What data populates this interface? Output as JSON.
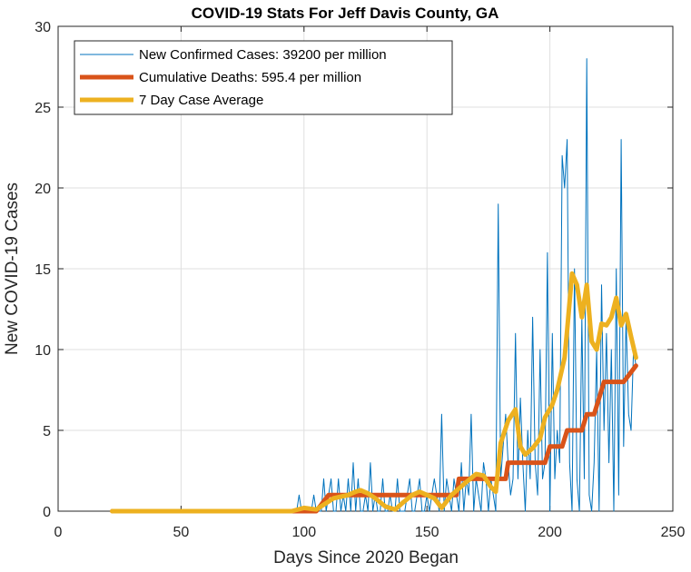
{
  "chart_data": {
    "type": "line",
    "title": "COVID-19 Stats For Jeff Davis County, GA",
    "xlabel": "Days Since 2020 Began",
    "ylabel": "New COVID-19 Cases",
    "xlim": [
      0,
      250
    ],
    "ylim": [
      0,
      30
    ],
    "xticks": [
      "0",
      "50",
      "100",
      "150",
      "200",
      "250"
    ],
    "yticks": [
      "0",
      "5",
      "10",
      "15",
      "20",
      "25",
      "30"
    ],
    "grid": true,
    "legend_position": "top-left",
    "series": [
      {
        "name": "New Confirmed Cases: 39200 per million",
        "color": "#0072BD",
        "x": [
          22,
          60,
          90,
          97,
          98,
          99,
          100,
          101,
          102,
          103,
          104,
          105,
          106,
          107,
          108,
          109,
          110,
          111,
          112,
          113,
          114,
          115,
          116,
          117,
          118,
          119,
          120,
          121,
          122,
          123,
          124,
          125,
          126,
          127,
          128,
          129,
          130,
          131,
          132,
          133,
          134,
          135,
          136,
          137,
          138,
          139,
          140,
          141,
          142,
          143,
          144,
          145,
          146,
          147,
          148,
          149,
          150,
          151,
          152,
          153,
          154,
          155,
          156,
          157,
          158,
          159,
          160,
          161,
          162,
          163,
          164,
          165,
          166,
          167,
          168,
          169,
          170,
          171,
          172,
          173,
          174,
          175,
          176,
          177,
          178,
          179,
          180,
          181,
          182,
          183,
          184,
          185,
          186,
          187,
          188,
          189,
          190,
          191,
          192,
          193,
          194,
          195,
          196,
          197,
          198,
          199,
          200,
          201,
          202,
          203,
          204,
          205,
          206,
          207,
          208,
          209,
          210,
          211,
          212,
          213,
          214,
          215,
          216,
          217,
          218,
          219,
          220,
          221,
          222,
          223,
          224,
          225,
          226,
          227,
          228,
          229,
          230,
          231,
          232,
          233,
          234,
          235
        ],
        "y": [
          0,
          0,
          0,
          0,
          1,
          0,
          0,
          0,
          0,
          0,
          1,
          0,
          0,
          0,
          2,
          0,
          1,
          2,
          0,
          0,
          2,
          0,
          1,
          0,
          2,
          0,
          3,
          0,
          2,
          0,
          0,
          1,
          0,
          3,
          0,
          1,
          0,
          0,
          2,
          0,
          0,
          1,
          0,
          0,
          2,
          0,
          0,
          0,
          1,
          2,
          0,
          0,
          1,
          2,
          0,
          0,
          1,
          0,
          1,
          2,
          1,
          0,
          6,
          0,
          2,
          1,
          0,
          2,
          1,
          0,
          3,
          0,
          2,
          1,
          6,
          0,
          2,
          1,
          0,
          3,
          2,
          0,
          2,
          1,
          0,
          19,
          2,
          4,
          6,
          3,
          1,
          2,
          11,
          2,
          7,
          3,
          0,
          5,
          2,
          12,
          3,
          1,
          10,
          2,
          3,
          16,
          0,
          11,
          2,
          5,
          3,
          22,
          20,
          23,
          3,
          0,
          15,
          2,
          0,
          12,
          2,
          28,
          1,
          0,
          3,
          10,
          0,
          14,
          5,
          11,
          3,
          10,
          0,
          15,
          1,
          23,
          4,
          12,
          6,
          5,
          10,
          9
        ],
        "stroke_width": 1
      },
      {
        "name": "Cumulative Deaths: 595.4 per million",
        "color": "#D95319",
        "x": [
          22,
          105,
          106,
          107,
          108,
          109,
          110,
          145,
          162,
          163,
          182,
          183,
          198,
          200,
          205,
          207,
          213,
          215,
          218,
          220,
          222,
          230,
          235
        ],
        "y": [
          0,
          0,
          0.2,
          0.4,
          0.6,
          0.8,
          1,
          1,
          1,
          2,
          2,
          3,
          3,
          4,
          4,
          5,
          5,
          6,
          6,
          7,
          8,
          8,
          9
        ],
        "stroke_width": 5
      },
      {
        "name": "7 Day Case Average",
        "color": "#EDB120",
        "x": [
          22,
          60,
          95,
          100,
          105,
          108,
          112,
          115,
          118,
          121,
          123,
          126,
          129,
          133,
          137,
          140,
          144,
          147,
          150,
          153,
          156,
          160,
          163,
          166,
          170,
          173,
          176,
          178,
          180,
          183,
          186,
          188,
          190,
          193,
          196,
          198,
          201,
          203,
          206,
          207,
          209,
          211,
          213,
          215,
          217,
          219,
          221,
          223,
          225,
          227,
          229,
          231,
          233,
          235
        ],
        "y": [
          0,
          0,
          0,
          0.2,
          0.1,
          0.4,
          0.8,
          0.9,
          1.0,
          1.2,
          1.3,
          1.1,
          0.8,
          0.3,
          0.1,
          0.5,
          1.0,
          1.2,
          1.0,
          0.8,
          0.2,
          1.0,
          1.4,
          1.8,
          2.3,
          2.2,
          1.5,
          1.2,
          4.2,
          5.6,
          6.3,
          4.0,
          3.5,
          3.9,
          4.5,
          5.8,
          6.6,
          7.5,
          9.5,
          11.2,
          14.7,
          14.0,
          12.0,
          14.0,
          10.5,
          10.0,
          11.6,
          11.5,
          12.0,
          13.2,
          11.5,
          12.2,
          10.8,
          9.5
        ],
        "stroke_width": 5
      }
    ]
  }
}
